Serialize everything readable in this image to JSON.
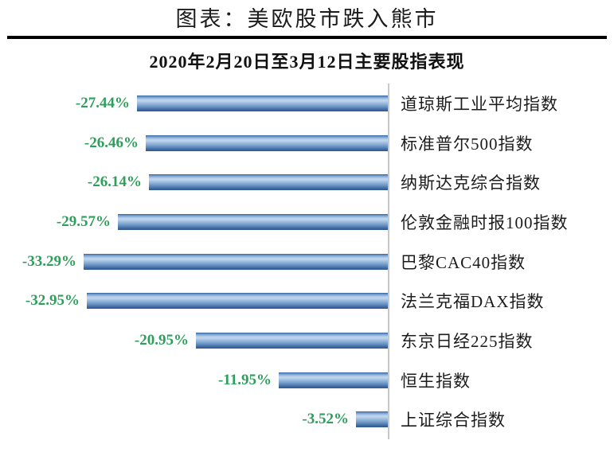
{
  "title": "图表：美欧股市跌入熊市",
  "subtitle": "2020年2月20日至3月12日主要股指表现",
  "colors": {
    "percent_green": "#2e9e5b",
    "bar_dark_blue": "#2f5d99",
    "bar_light_blue": "#bfd6ee",
    "axis_grey": "#c9c9c9",
    "text_black": "#1c1c1c",
    "title_rule_black": "#000000"
  },
  "chart_data": {
    "type": "bar",
    "orientation": "horizontal",
    "title": "图表：美欧股市跌入熊市",
    "subtitle": "2020年2月20日至3月12日主要股指表现",
    "value_unit": "percent",
    "xlim": [
      -35,
      0
    ],
    "grid": false,
    "legend": false,
    "baseline_axis": "right",
    "categories": [
      "道琼斯工业平均指数",
      "标准普尔500指数",
      "纳斯达克综合指数",
      "伦敦金融时报100指数",
      "巴黎CAC40指数",
      "法兰克福DAX指数",
      "东京日经225指数",
      "恒生指数",
      "上证综合指数"
    ],
    "values": [
      -27.44,
      -26.46,
      -26.14,
      -29.57,
      -33.29,
      -32.95,
      -20.95,
      -11.95,
      -3.52
    ],
    "value_labels": [
      "-27.44%",
      "-26.46%",
      "-26.14%",
      "-29.57%",
      "-33.29%",
      "-32.95%",
      "-20.95%",
      "-11.95%",
      "-3.52%"
    ]
  }
}
